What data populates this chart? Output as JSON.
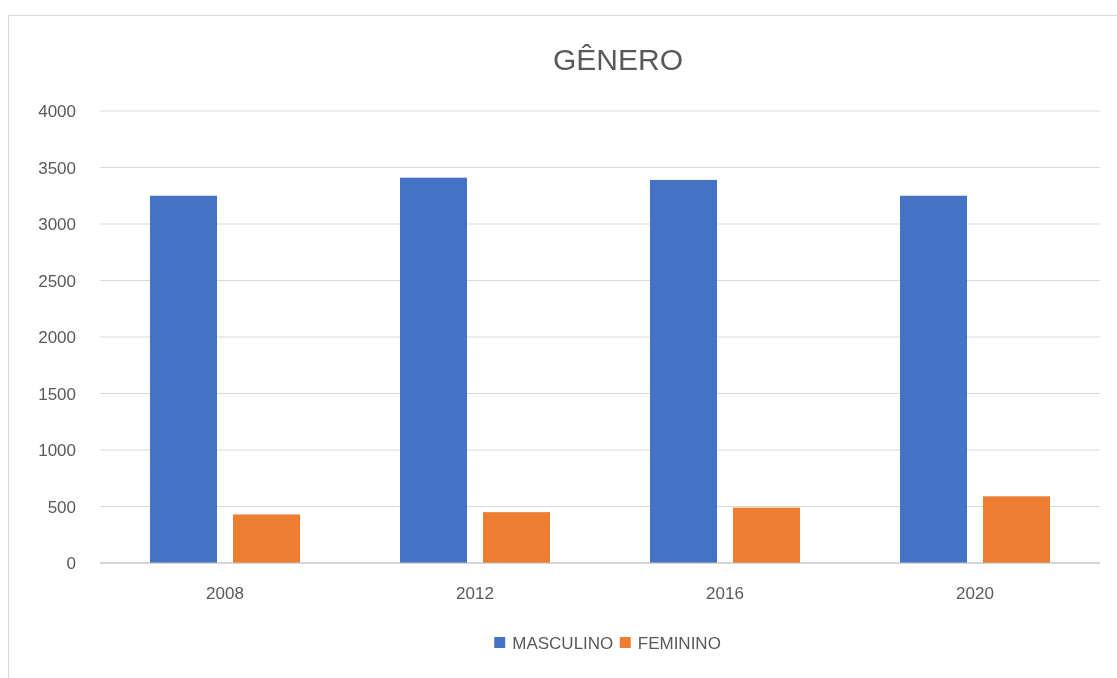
{
  "chart_data": {
    "type": "bar",
    "title": "GÊNERO",
    "categories": [
      "2008",
      "2012",
      "2016",
      "2020"
    ],
    "series": [
      {
        "name": "MASCULINO",
        "color": "#4472c4",
        "values": [
          3250,
          3410,
          3390,
          3250
        ]
      },
      {
        "name": "FEMININO",
        "color": "#ed7d31",
        "values": [
          430,
          450,
          490,
          590
        ]
      }
    ],
    "ylim": [
      0,
      4000
    ],
    "yticks": [
      0,
      500,
      1000,
      1500,
      2000,
      2500,
      3000,
      3500,
      4000
    ],
    "grid": "y",
    "legend": "bottom"
  }
}
